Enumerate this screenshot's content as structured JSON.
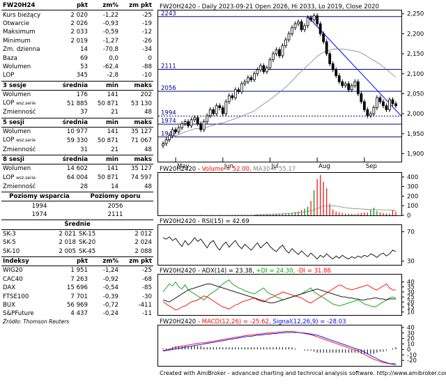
{
  "quote_table": {
    "header": [
      "FW20H24",
      "pkt",
      "zm%",
      "zm pkt"
    ],
    "rows": [
      [
        "Kurs bieżący",
        "2 020",
        "-1,22",
        "-25"
      ],
      [
        "Otwarcie",
        "2 026",
        "-0,93",
        "-19"
      ],
      [
        "Maksimum",
        "2 033",
        "-0,59",
        "-12"
      ],
      [
        "Minimum",
        "2 019",
        "-1,27",
        "-26"
      ],
      [
        "Zm. dzienna",
        "14",
        "-70,8",
        "-34"
      ],
      [
        "Baza",
        "69",
        "0,0",
        "0"
      ],
      [
        "Wolumen",
        "53",
        "-62,4",
        "-88"
      ],
      [
        "LOP",
        "345",
        "-2,8",
        "-10"
      ]
    ]
  },
  "sessions": [
    {
      "header": [
        "3 sesje",
        "średnia",
        "min",
        "maks"
      ],
      "rows": [
        [
          "Wolumen",
          "",
          "176",
          "141",
          "202"
        ],
        [
          "LOP",
          "wsz.serie",
          "51 885",
          "50 871",
          "53 130"
        ],
        [
          "Zmienność",
          "",
          "37",
          "21",
          "48"
        ]
      ]
    },
    {
      "header": [
        "5 sesji",
        "średnia",
        "min",
        "maks"
      ],
      "rows": [
        [
          "Wolumen",
          "",
          "10 977",
          "141",
          "35 127"
        ],
        [
          "LOP",
          "wsz.serie",
          "59 330",
          "50 871",
          "71 067"
        ],
        [
          "Zmienność",
          "",
          "31",
          "21",
          "48"
        ]
      ]
    },
    {
      "header": [
        "8 sesji",
        "średnia",
        "min",
        "maks"
      ],
      "rows": [
        [
          "Wolumen",
          "",
          "14 602",
          "141",
          "35 127"
        ],
        [
          "LOP",
          "wsz.serie",
          "64 004",
          "50 871",
          "74 597"
        ],
        [
          "Zmienność",
          "",
          "28",
          "14",
          "48"
        ]
      ]
    }
  ],
  "levels": {
    "support_label": "Poziomy wsparcia",
    "resistance_label": "Poziomy oporu",
    "support": [
      "1994",
      "1974"
    ],
    "resistance": [
      "2056",
      "2111"
    ]
  },
  "averages": {
    "title": "Średnie",
    "rows": [
      [
        "SK-3",
        "2 021",
        "SK-15",
        "2 012"
      ],
      [
        "SK-5",
        "2 018",
        "SK-20",
        "2 024"
      ],
      [
        "SK-10",
        "2 005",
        "SK-45",
        "2 088"
      ]
    ]
  },
  "indices": {
    "header": [
      "Indeksy",
      "pkt",
      "zm%",
      "zm pkt"
    ],
    "rows": [
      [
        "WIG20",
        "1 951",
        "-1,24",
        "-25"
      ],
      [
        "CAC40",
        "7 263",
        "-0,92",
        "-68"
      ],
      [
        "DAX",
        "15 696",
        "-0,54",
        "-85"
      ],
      [
        "FTSE100",
        "7 701",
        "-0,39",
        "-30"
      ],
      [
        "BUX",
        "56 969",
        "-0,72",
        "-411"
      ],
      [
        "S&PFuture",
        "4 437",
        "-0,24",
        "-11"
      ]
    ],
    "source": "Źródło: Thomson Reuters"
  },
  "chart_data": [
    {
      "type": "candlestick",
      "title": "FW20H2420 - Daily 2023-09-21 Open 2026, Hi 2033, Lo 2019, Close 2020",
      "ylim": [
        1880,
        2260
      ],
      "yticks": [
        "2,250",
        "2,200",
        "2,150",
        "2,100",
        "2,050",
        "2,000",
        "1,950",
        "1,900"
      ],
      "ytick_values": [
        2250,
        2200,
        2150,
        2100,
        2050,
        2000,
        1950,
        1900
      ],
      "months": [
        "May",
        "Jun",
        "Jul",
        "Aug",
        "Sep"
      ],
      "level_labels": [
        "2243",
        "2111",
        "2056",
        "1994",
        "1974",
        "1942"
      ],
      "levels": [
        2243,
        2111,
        2056,
        1994,
        1974,
        1942
      ],
      "close": [
        1925,
        1935,
        1945,
        1960,
        1955,
        1965,
        1975,
        1980,
        1970,
        1985,
        1990,
        1975,
        1960,
        1980,
        1995,
        2010,
        2000,
        2020,
        2015,
        2000,
        2030,
        2045,
        2040,
        2060,
        2055,
        2075,
        2080,
        2090,
        2085,
        2100,
        2110,
        2120,
        2105,
        2115,
        2135,
        2150,
        2160,
        2145,
        2170,
        2185,
        2200,
        2215,
        2225,
        2230,
        2210,
        2220,
        2240,
        2235,
        2245,
        2225,
        2200,
        2180,
        2150,
        2125,
        2110,
        2095,
        2080,
        2070,
        2075,
        2060,
        2070,
        2080,
        2050,
        2030,
        2010,
        1995,
        2000,
        2015,
        2040,
        2030,
        2020,
        2010,
        2035,
        2025,
        2020
      ]
    },
    {
      "type": "bar",
      "title_prefix": "FW20H2420 - ",
      "title_vol": "Volume = 52.00,",
      "title_ma": "MA30 = 55.17",
      "ylim": [
        0,
        450
      ],
      "yticks": [
        "400",
        "300",
        "200",
        "100",
        "0"
      ],
      "ytick_values": [
        400,
        300,
        200,
        100,
        0
      ],
      "volume": [
        2,
        2,
        3,
        2,
        3,
        4,
        2,
        3,
        3,
        2,
        4,
        3,
        5,
        3,
        4,
        3,
        5,
        4,
        6,
        4,
        5,
        6,
        5,
        7,
        6,
        8,
        7,
        6,
        9,
        8,
        10,
        12,
        11,
        14,
        12,
        16,
        15,
        18,
        20,
        22,
        25,
        28,
        35,
        40,
        55,
        70,
        90,
        150,
        260,
        380,
        420,
        350,
        280,
        120,
        60,
        40,
        30,
        25,
        20,
        18,
        15,
        12,
        20,
        25,
        30,
        28,
        60,
        80,
        45,
        30,
        25,
        20,
        18,
        52,
        40
      ],
      "ma30": [
        0,
        0,
        0,
        0,
        0,
        0,
        0,
        0,
        0,
        0,
        0,
        0,
        0,
        0,
        0,
        0,
        0,
        0,
        0,
        0,
        0,
        0,
        0,
        0,
        0,
        0,
        0,
        0,
        0,
        0,
        8,
        9,
        9,
        10,
        11,
        12,
        13,
        14,
        15,
        17,
        19,
        21,
        24,
        28,
        32,
        36,
        41,
        48,
        58,
        70,
        84,
        95,
        98,
        100,
        98,
        95,
        90,
        85,
        80,
        76,
        72,
        70,
        68,
        66,
        64,
        62,
        60,
        60,
        59,
        58,
        57,
        56,
        56,
        55,
        55
      ]
    },
    {
      "type": "line",
      "title": "FW20H2420 - RSI(15) = 42.69",
      "ylim": [
        25,
        80
      ],
      "yticks": [
        "70",
        "30"
      ],
      "ytick_values": [
        70,
        30
      ],
      "rsi": [
        62,
        60,
        63,
        58,
        61,
        55,
        50,
        58,
        52,
        56,
        62,
        57,
        60,
        54,
        48,
        55,
        58,
        50,
        45,
        52,
        56,
        49,
        54,
        58,
        51,
        47,
        53,
        49,
        45,
        50,
        55,
        48,
        52,
        56,
        50,
        46,
        43,
        48,
        52,
        45,
        41,
        47,
        43,
        39,
        44,
        40,
        36,
        41,
        37,
        33,
        38,
        35,
        40,
        36,
        33,
        37,
        34,
        38,
        35,
        33,
        36,
        34,
        37,
        35,
        38,
        36,
        40,
        38,
        35,
        39,
        41,
        37,
        40,
        45,
        43
      ]
    },
    {
      "type": "line",
      "title_prefix": "FW20H2420 - ADX(14) = 23.38,",
      "title_pdi": "+DI = 24.30,",
      "title_mdi": "-DI = 31.86",
      "ylim": [
        7,
        48
      ],
      "yticks": [
        "40",
        "35",
        "30",
        "25",
        "20",
        "15",
        "10"
      ],
      "ytick_values": [
        40,
        35,
        30,
        25,
        20,
        15,
        10
      ],
      "adx": [
        22,
        21,
        20,
        22,
        24,
        26,
        28,
        30,
        32,
        33,
        34,
        35,
        36,
        37,
        38,
        38,
        37,
        36,
        35,
        34,
        33,
        32,
        31,
        30,
        29,
        28,
        27,
        26,
        25,
        24,
        23,
        22,
        21,
        20,
        19,
        19,
        20,
        21,
        22,
        23,
        24,
        25,
        26,
        27,
        28,
        29,
        30,
        31,
        32,
        33,
        32,
        31,
        30,
        29,
        28,
        27,
        26,
        25,
        25,
        24,
        24,
        23,
        23,
        22,
        22,
        23,
        23,
        24,
        24,
        23,
        23,
        22,
        23,
        23,
        23
      ],
      "pdi": [
        30,
        34,
        38,
        36,
        40,
        35,
        33,
        37,
        32,
        30,
        28,
        26,
        24,
        22,
        25,
        28,
        30,
        32,
        35,
        38,
        40,
        42,
        38,
        36,
        34,
        33,
        31,
        30,
        29,
        28,
        30,
        32,
        34,
        30,
        28,
        27,
        25,
        24,
        22,
        23,
        24,
        25,
        26,
        27,
        28,
        30,
        32,
        34,
        30,
        28,
        26,
        24,
        22,
        20,
        18,
        17,
        16,
        17,
        18,
        19,
        20,
        21,
        22,
        20,
        18,
        17,
        16,
        15,
        16,
        18,
        20,
        22,
        24,
        25,
        24
      ],
      "mdi": [
        20,
        18,
        16,
        14,
        12,
        13,
        15,
        16,
        18,
        20,
        21,
        22,
        24,
        26,
        25,
        23,
        21,
        19,
        17,
        15,
        14,
        13,
        15,
        17,
        18,
        20,
        21,
        22,
        23,
        24,
        22,
        21,
        20,
        22,
        24,
        25,
        27,
        28,
        30,
        29,
        28,
        27,
        26,
        25,
        24,
        22,
        20,
        19,
        21,
        23,
        25,
        27,
        29,
        31,
        33,
        35,
        37,
        36,
        34,
        33,
        32,
        33,
        34,
        35,
        36,
        37,
        35,
        33,
        32,
        34,
        36,
        38,
        34,
        32,
        32
      ]
    },
    {
      "type": "line",
      "title_prefix": "FW20H2420 -",
      "title_macd": "MACD(12,26) = -25.62,",
      "title_signal": "Signal(12,26,9) = -28.03",
      "ylim": [
        -30,
        45
      ],
      "yticks": [
        "40",
        "30",
        "20",
        "10",
        "0",
        "-10",
        "-20"
      ],
      "ytick_values": [
        40,
        30,
        20,
        10,
        0,
        -10,
        -20
      ],
      "macd": [
        -2,
        -1,
        0,
        2,
        4,
        5,
        6,
        7,
        8,
        9,
        10,
        11,
        12,
        12,
        13,
        14,
        15,
        16,
        17,
        18,
        19,
        20,
        21,
        22,
        23,
        24,
        25,
        26,
        26,
        27,
        28,
        28,
        29,
        30,
        30,
        31,
        31,
        32,
        32,
        33,
        33,
        33,
        32,
        31,
        30,
        29,
        28,
        27,
        25,
        23,
        21,
        19,
        17,
        15,
        13,
        11,
        9,
        7,
        5,
        3,
        1,
        -1,
        -3,
        -6,
        -9,
        -12,
        -15,
        -18,
        -20,
        -22,
        -24,
        -25,
        -26,
        -26,
        -26
      ],
      "signal": [
        -3,
        -2,
        -1,
        0,
        1,
        2,
        3,
        4,
        5,
        6,
        7,
        8,
        9,
        10,
        11,
        12,
        13,
        14,
        15,
        16,
        17,
        18,
        19,
        20,
        21,
        22,
        23,
        24,
        24,
        25,
        26,
        26,
        27,
        28,
        28,
        29,
        29,
        30,
        30,
        31,
        31,
        31,
        31,
        31,
        30,
        30,
        29,
        28,
        27,
        26,
        24,
        22,
        20,
        18,
        16,
        14,
        12,
        10,
        8,
        6,
        4,
        2,
        0,
        -2,
        -5,
        -8,
        -11,
        -14,
        -17,
        -20,
        -22,
        -24,
        -26,
        -27,
        -28
      ]
    }
  ],
  "footer": "Created with AmiBroker - advanced charting and technical analysis software. http://www.amibroker.com",
  "colors": {
    "up": "#008000",
    "down": "#ff0000",
    "candle": "#000000",
    "blue": "#0000ff",
    "gray": "#808080",
    "navy": "#000080",
    "volume_title": "#ff0000",
    "ma": "#808080",
    "pdi": "#00a000",
    "mdi": "#ff0000",
    "macd": "#ff0000",
    "signal": "#0000ff"
  }
}
